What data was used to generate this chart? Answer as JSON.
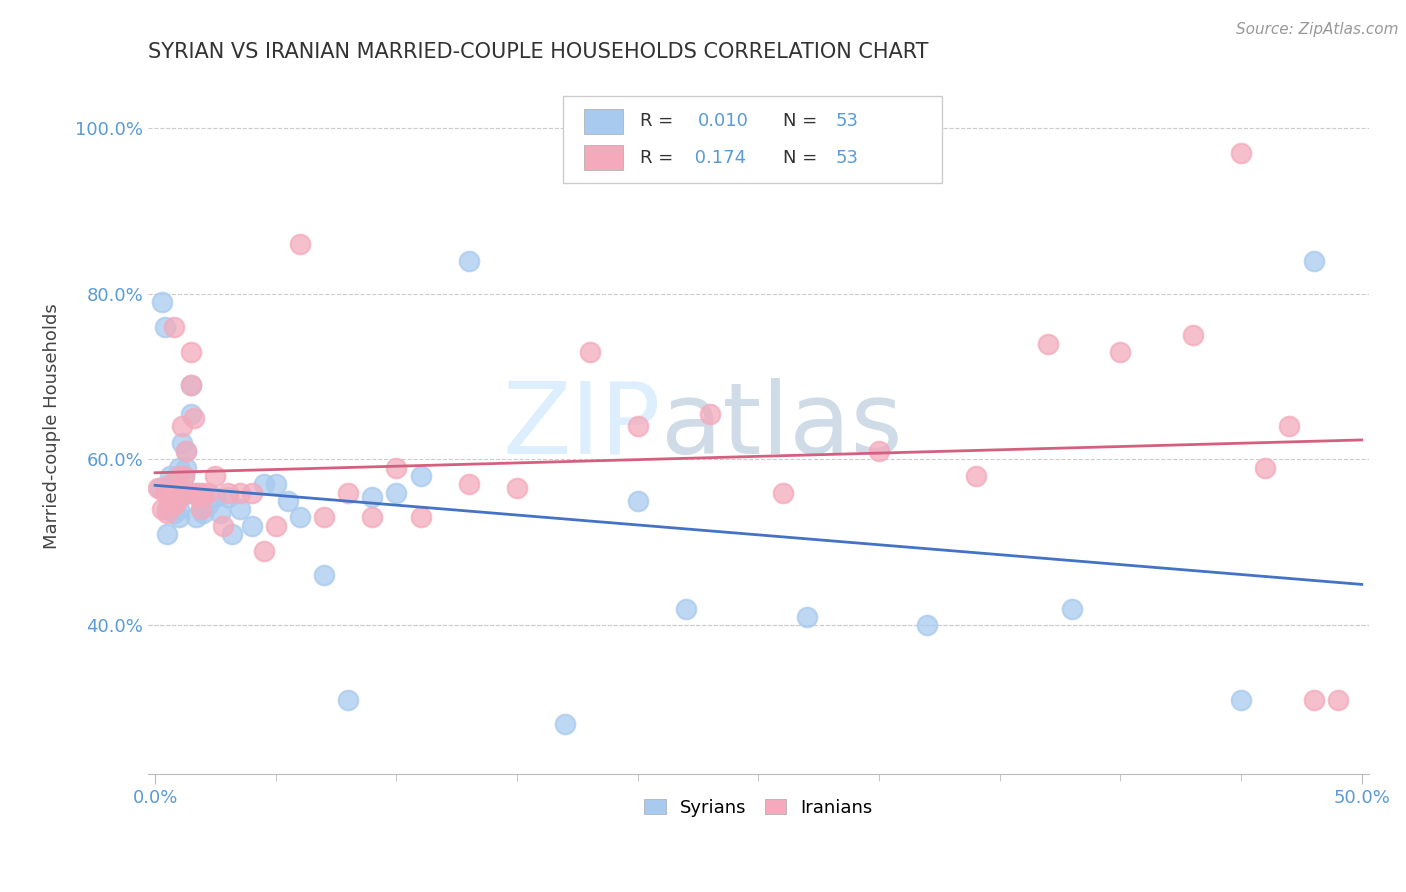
{
  "title": "SYRIAN VS IRANIAN MARRIED-COUPLE HOUSEHOLDS CORRELATION CHART",
  "source_text": "Source: ZipAtlas.com",
  "ylabel": "Married-couple Households",
  "ytick_labels": [
    "40.0%",
    "60.0%",
    "80.0%",
    "100.0%"
  ],
  "ytick_values": [
    0.4,
    0.6,
    0.8,
    1.0
  ],
  "xlim": [
    -0.003,
    0.503
  ],
  "ylim": [
    0.22,
    1.06
  ],
  "legend_r_syrian": "0.010",
  "legend_r_iranian": "0.174",
  "legend_n": "53",
  "syrian_color": "#A8CAEE",
  "iranian_color": "#F4AABB",
  "regression_syrian_color": "#4472C4",
  "regression_iranian_color": "#D46080",
  "watermark_zip": "ZIP",
  "watermark_atlas": "atlas",
  "syrian_x": [
    0.002,
    0.003,
    0.004,
    0.005,
    0.005,
    0.006,
    0.006,
    0.007,
    0.007,
    0.008,
    0.008,
    0.009,
    0.01,
    0.01,
    0.01,
    0.011,
    0.012,
    0.012,
    0.013,
    0.013,
    0.014,
    0.015,
    0.015,
    0.016,
    0.017,
    0.018,
    0.019,
    0.02,
    0.022,
    0.025,
    0.027,
    0.03,
    0.032,
    0.035,
    0.04,
    0.045,
    0.05,
    0.055,
    0.06,
    0.07,
    0.08,
    0.09,
    0.1,
    0.11,
    0.13,
    0.17,
    0.2,
    0.22,
    0.27,
    0.32,
    0.38,
    0.45,
    0.48
  ],
  "syrian_y": [
    0.565,
    0.79,
    0.76,
    0.54,
    0.51,
    0.58,
    0.555,
    0.565,
    0.545,
    0.535,
    0.57,
    0.56,
    0.59,
    0.54,
    0.53,
    0.62,
    0.58,
    0.56,
    0.61,
    0.59,
    0.56,
    0.69,
    0.655,
    0.56,
    0.53,
    0.56,
    0.54,
    0.535,
    0.545,
    0.555,
    0.535,
    0.555,
    0.51,
    0.54,
    0.52,
    0.57,
    0.57,
    0.55,
    0.53,
    0.46,
    0.31,
    0.555,
    0.56,
    0.58,
    0.84,
    0.28,
    0.55,
    0.42,
    0.41,
    0.4,
    0.42,
    0.31,
    0.84
  ],
  "iranian_x": [
    0.001,
    0.003,
    0.004,
    0.005,
    0.005,
    0.006,
    0.007,
    0.008,
    0.008,
    0.009,
    0.01,
    0.01,
    0.011,
    0.012,
    0.013,
    0.014,
    0.015,
    0.015,
    0.016,
    0.017,
    0.018,
    0.019,
    0.02,
    0.022,
    0.025,
    0.028,
    0.03,
    0.035,
    0.04,
    0.045,
    0.05,
    0.06,
    0.07,
    0.08,
    0.09,
    0.1,
    0.11,
    0.13,
    0.15,
    0.18,
    0.2,
    0.23,
    0.26,
    0.3,
    0.34,
    0.37,
    0.4,
    0.43,
    0.45,
    0.46,
    0.47,
    0.48,
    0.49
  ],
  "iranian_y": [
    0.565,
    0.54,
    0.56,
    0.56,
    0.535,
    0.57,
    0.555,
    0.76,
    0.545,
    0.55,
    0.58,
    0.56,
    0.64,
    0.58,
    0.61,
    0.56,
    0.73,
    0.69,
    0.65,
    0.56,
    0.555,
    0.54,
    0.56,
    0.56,
    0.58,
    0.52,
    0.56,
    0.56,
    0.56,
    0.49,
    0.52,
    0.86,
    0.53,
    0.56,
    0.53,
    0.59,
    0.53,
    0.57,
    0.565,
    0.73,
    0.64,
    0.655,
    0.56,
    0.61,
    0.58,
    0.74,
    0.73,
    0.75,
    0.97,
    0.59,
    0.64,
    0.31,
    0.31
  ]
}
